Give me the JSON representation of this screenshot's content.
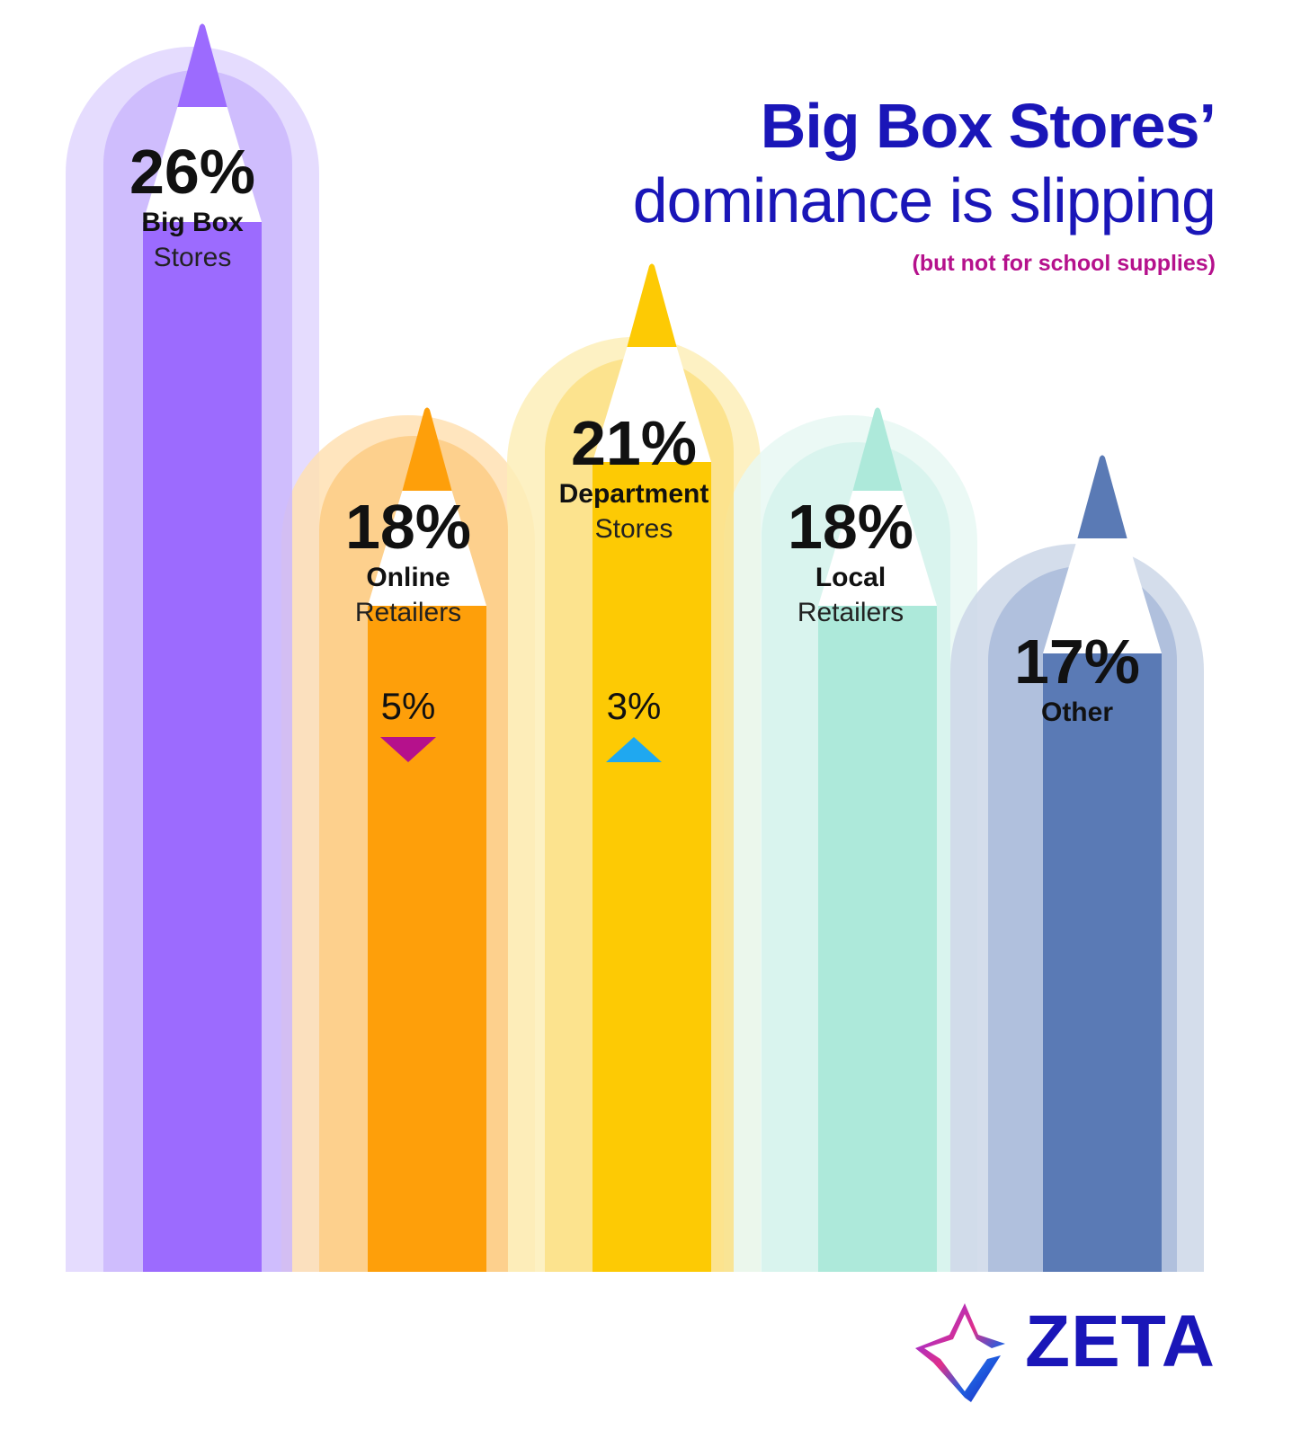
{
  "header": {
    "title": "Big Box Stores’",
    "subtitle": "dominance is slipping",
    "note": "(but not for school supplies)"
  },
  "logo": {
    "text": "ZETA",
    "icon": "zeta-diamond-icon"
  },
  "colors": {
    "title": "#1a16b8",
    "note": "#b5118c",
    "down_arrow": "#b5118c",
    "up_arrow": "#1fa8f0"
  },
  "chart_data": {
    "type": "bar",
    "title": "Big Box Stores’ dominance is slipping",
    "categories": [
      "Big Box Stores",
      "Online Retailers",
      "Department Stores",
      "Local Retailers",
      "Other"
    ],
    "values": [
      26,
      18,
      21,
      18,
      17
    ],
    "unit": "%",
    "bars": [
      {
        "value": 26,
        "value_label": "26%",
        "name_bold": "Big Box",
        "name_light": "Stores",
        "change": null,
        "direction": null,
        "colors": {
          "outer": "#e1d6fe",
          "inner": "#cbb7fd",
          "body": "#9c6bfe",
          "tip": "#9c6bfe"
        }
      },
      {
        "value": 18,
        "value_label": "18%",
        "name_bold": "Online",
        "name_light": "Retailers",
        "change": "5%",
        "direction": "down",
        "colors": {
          "outer": "#ffe0b3",
          "inner": "#fdcc85",
          "body": "#fe9f0a",
          "tip": "#fe9f0a"
        }
      },
      {
        "value": 21,
        "value_label": "21%",
        "name_bold": "Department",
        "name_light": "Stores",
        "change": "3%",
        "direction": "up",
        "colors": {
          "outer": "#fdeeb8",
          "inner": "#fbe085",
          "body": "#fdca04",
          "tip": "#fdca04"
        }
      },
      {
        "value": 18,
        "value_label": "18%",
        "name_bold": "Local",
        "name_light": "Retailers",
        "change": null,
        "direction": null,
        "colors": {
          "outer": "#e8f8f3",
          "inner": "#d6f3ec",
          "body": "#ade9da",
          "tip": "#ade9da"
        }
      },
      {
        "value": 17,
        "value_label": "17%",
        "name_bold": "Other",
        "name_light": "",
        "change": null,
        "direction": null,
        "colors": {
          "outer": "#cdd7e8",
          "inner": "#a9bbda",
          "body": "#5a7ab5",
          "tip": "#5a7ab5"
        }
      }
    ]
  }
}
